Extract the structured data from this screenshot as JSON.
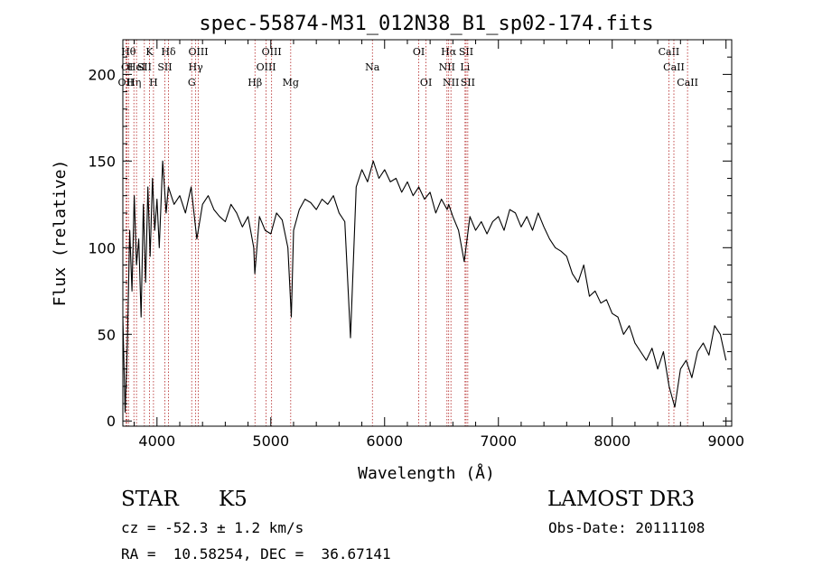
{
  "chart_data": {
    "type": "line",
    "title": "spec-55874-M31_012N38_B1_sp02-174.fits",
    "xlabel": "Wavelength (Å)",
    "ylabel": "Flux (relative)",
    "xlim": [
      3700,
      9050
    ],
    "ylim": [
      -3,
      220
    ],
    "xticks": [
      4000,
      5000,
      6000,
      7000,
      8000,
      9000
    ],
    "yticks": [
      0,
      50,
      100,
      150,
      200
    ],
    "series": [
      {
        "name": "spectrum",
        "x": [
          3700,
          3720,
          3740,
          3760,
          3780,
          3800,
          3820,
          3840,
          3860,
          3880,
          3900,
          3920,
          3940,
          3960,
          3980,
          4000,
          4020,
          4050,
          4080,
          4100,
          4150,
          4200,
          4250,
          4300,
          4350,
          4400,
          4450,
          4500,
          4550,
          4600,
          4650,
          4700,
          4750,
          4800,
          4850,
          4860,
          4900,
          4950,
          5000,
          5050,
          5100,
          5150,
          5180,
          5200,
          5250,
          5300,
          5350,
          5400,
          5450,
          5500,
          5550,
          5600,
          5650,
          5700,
          5750,
          5800,
          5850,
          5900,
          5950,
          6000,
          6050,
          6100,
          6150,
          6200,
          6250,
          6300,
          6350,
          6400,
          6450,
          6500,
          6550,
          6563,
          6600,
          6650,
          6700,
          6750,
          6800,
          6850,
          6900,
          6950,
          7000,
          7050,
          7100,
          7150,
          7200,
          7250,
          7300,
          7350,
          7400,
          7450,
          7500,
          7550,
          7600,
          7650,
          7700,
          7750,
          7800,
          7850,
          7900,
          7950,
          8000,
          8050,
          8100,
          8150,
          8200,
          8250,
          8300,
          8350,
          8400,
          8450,
          8500,
          8550,
          8600,
          8650,
          8700,
          8750,
          8800,
          8850,
          8900,
          8950,
          9000
        ],
        "values": [
          60,
          5,
          45,
          110,
          75,
          130,
          90,
          105,
          60,
          125,
          80,
          135,
          95,
          140,
          110,
          128,
          100,
          150,
          120,
          135,
          125,
          130,
          120,
          135,
          105,
          125,
          130,
          122,
          118,
          115,
          125,
          120,
          112,
          118,
          100,
          85,
          118,
          110,
          108,
          120,
          116,
          100,
          60,
          110,
          122,
          128,
          126,
          122,
          128,
          125,
          130,
          120,
          115,
          48,
          135,
          145,
          138,
          150,
          140,
          145,
          138,
          140,
          132,
          138,
          130,
          135,
          128,
          132,
          120,
          128,
          122,
          125,
          118,
          110,
          92,
          118,
          110,
          115,
          108,
          115,
          118,
          110,
          122,
          120,
          112,
          118,
          110,
          120,
          112,
          105,
          100,
          98,
          95,
          85,
          80,
          90,
          72,
          75,
          68,
          70,
          62,
          60,
          50,
          55,
          45,
          40,
          35,
          42,
          30,
          40,
          20,
          8,
          30,
          35,
          25,
          40,
          45,
          38,
          55,
          50,
          35
        ]
      }
    ],
    "line_markers": [
      {
        "label": "OII",
        "wl": 3727,
        "row": 2
      },
      {
        "label": "OI",
        "wl": 3737,
        "row": 1
      },
      {
        "label": "Hθ",
        "wl": 3750,
        "row": 0
      },
      {
        "label": "Hη",
        "wl": 3797,
        "row": 2
      },
      {
        "label": "HeI",
        "wl": 3820,
        "row": 1
      },
      {
        "label": "K",
        "wl": 3934,
        "row": 0
      },
      {
        "label": "SII",
        "wl": 3889,
        "row": 1
      },
      {
        "label": "H",
        "wl": 3969,
        "row": 2
      },
      {
        "label": "Hδ",
        "wl": 4101,
        "row": 0
      },
      {
        "label": "SII",
        "wl": 4069,
        "row": 1
      },
      {
        "label": "OIII",
        "wl": 4363,
        "row": 0
      },
      {
        "label": "Hγ",
        "wl": 4340,
        "row": 1
      },
      {
        "label": "G",
        "wl": 4305,
        "row": 2
      },
      {
        "label": "Hβ",
        "wl": 4861,
        "row": 2
      },
      {
        "label": "OIII",
        "wl": 5007,
        "row": 0
      },
      {
        "label": "OIII",
        "wl": 4959,
        "row": 1
      },
      {
        "label": "Mg",
        "wl": 5175,
        "row": 2
      },
      {
        "label": "Na",
        "wl": 5893,
        "row": 1
      },
      {
        "label": "OI",
        "wl": 6300,
        "row": 0
      },
      {
        "label": "OI",
        "wl": 6364,
        "row": 2
      },
      {
        "label": "Hα",
        "wl": 6563,
        "row": 0
      },
      {
        "label": "NII",
        "wl": 6548,
        "row": 1
      },
      {
        "label": "NII",
        "wl": 6583,
        "row": 2
      },
      {
        "label": "SII",
        "wl": 6716,
        "row": 0
      },
      {
        "label": "Li",
        "wl": 6707,
        "row": 1
      },
      {
        "label": "SII",
        "wl": 6731,
        "row": 2
      },
      {
        "label": "CaII",
        "wl": 8498,
        "row": 0
      },
      {
        "label": "CaII",
        "wl": 8542,
        "row": 1
      },
      {
        "label": "CaII",
        "wl": 8662,
        "row": 2
      }
    ]
  },
  "info": {
    "object_class": "STAR",
    "subclass": "K5",
    "survey": "LAMOST DR3",
    "cz": "cz = -52.3 ± 1.2 km/s",
    "obs_date": "Obs-Date: 20111108",
    "coords": "RA =  10.58254, DEC =  36.67141"
  }
}
